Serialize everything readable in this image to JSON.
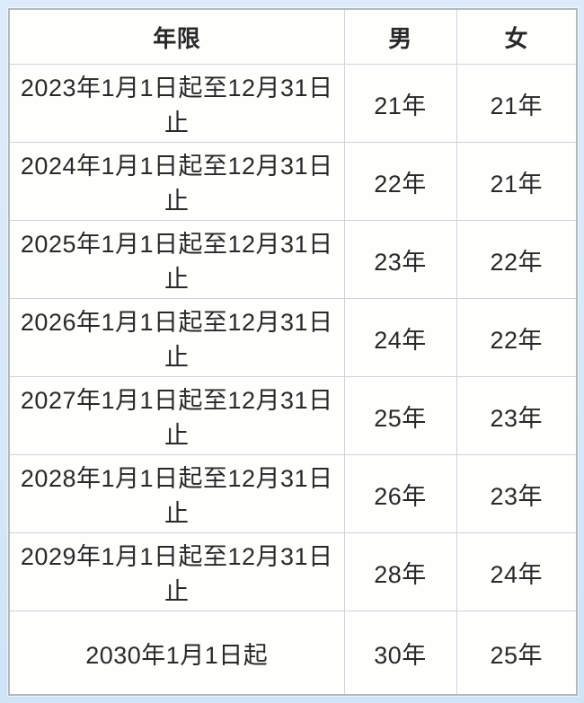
{
  "page": {
    "background_color": "#d9e9f8",
    "table_outer_border_color": "#b2bac0",
    "grid_line_color": "#ced3d7",
    "cell_background": "#fefefd",
    "text_color": "#292929"
  },
  "table": {
    "headers": [
      "年限",
      "男",
      "女"
    ],
    "rows": [
      [
        "2023年1月1日起至12月31日止",
        "21年",
        "21年"
      ],
      [
        "2024年1月1日起至12月31日止",
        "22年",
        "21年"
      ],
      [
        "2025年1月1日起至12月31日止",
        "23年",
        "22年"
      ],
      [
        "2026年1月1日起至12月31日止",
        "24年",
        "22年"
      ],
      [
        "2027年1月1日起至12月31日止",
        "25年",
        "23年"
      ],
      [
        "2028年1月1日起至12月31日止",
        "26年",
        "23年"
      ],
      [
        "2029年1月1日起至12月31日止",
        "28年",
        "24年"
      ],
      [
        "2030年1月1日起",
        "30年",
        "25年"
      ]
    ]
  },
  "chart_data": {
    "type": "table",
    "title": "",
    "columns": [
      "年限",
      "男",
      "女"
    ],
    "rows": [
      [
        "2023年1月1日起至12月31日止",
        "21年",
        "21年"
      ],
      [
        "2024年1月1日起至12月31日止",
        "22年",
        "21年"
      ],
      [
        "2025年1月1日起至12月31日止",
        "23年",
        "22年"
      ],
      [
        "2026年1月1日起至12月31日止",
        "24年",
        "22年"
      ],
      [
        "2027年1月1日起至12月31日止",
        "25年",
        "23年"
      ],
      [
        "2028年1月1日起至12月31日止",
        "26年",
        "23年"
      ],
      [
        "2029年1月1日起至12月31日止",
        "28年",
        "24年"
      ],
      [
        "2030年1月1日起",
        "30年",
        "25年"
      ]
    ],
    "series": [
      {
        "name": "男",
        "values": [
          21,
          22,
          23,
          24,
          25,
          26,
          28,
          30
        ]
      },
      {
        "name": "女",
        "values": [
          21,
          21,
          22,
          22,
          23,
          23,
          24,
          25
        ]
      }
    ],
    "categories": [
      "2023",
      "2024",
      "2025",
      "2026",
      "2027",
      "2028",
      "2029",
      "2030"
    ],
    "value_unit": "年"
  }
}
